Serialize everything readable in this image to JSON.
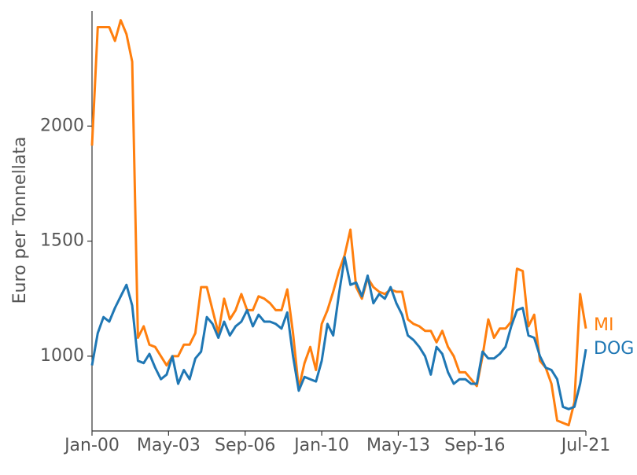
{
  "chart_data": {
    "type": "line",
    "ylabel": "Euro per Tonnellata",
    "x": [
      "2000-01",
      "2000-04",
      "2000-07",
      "2000-10",
      "2001-01",
      "2001-04",
      "2001-07",
      "2001-10",
      "2002-01",
      "2002-04",
      "2002-07",
      "2002-10",
      "2003-01",
      "2003-04",
      "2003-07",
      "2003-10",
      "2004-01",
      "2004-04",
      "2004-07",
      "2004-10",
      "2005-01",
      "2005-04",
      "2005-07",
      "2005-10",
      "2006-01",
      "2006-04",
      "2006-07",
      "2006-10",
      "2007-01",
      "2007-04",
      "2007-07",
      "2007-10",
      "2008-01",
      "2008-04",
      "2008-07",
      "2008-10",
      "2009-01",
      "2009-04",
      "2009-07",
      "2009-10",
      "2010-01",
      "2010-04",
      "2010-07",
      "2010-10",
      "2011-01",
      "2011-04",
      "2011-07",
      "2011-10",
      "2012-01",
      "2012-04",
      "2012-07",
      "2012-10",
      "2013-01",
      "2013-04",
      "2013-07",
      "2013-10",
      "2014-01",
      "2014-04",
      "2014-07",
      "2014-10",
      "2015-01",
      "2015-04",
      "2015-07",
      "2015-10",
      "2016-01",
      "2016-04",
      "2016-07",
      "2016-10",
      "2017-01",
      "2017-04",
      "2017-07",
      "2017-10",
      "2018-01",
      "2018-04",
      "2018-07",
      "2018-10",
      "2019-01",
      "2019-04",
      "2019-07",
      "2019-10",
      "2020-01",
      "2020-04",
      "2020-07",
      "2020-10",
      "2021-01",
      "2021-04",
      "2021-07"
    ],
    "series": [
      {
        "name": "MI",
        "color": "#ff7f0e",
        "values": [
          1915,
          2430,
          2430,
          2430,
          2370,
          2460,
          2400,
          2280,
          1080,
          1130,
          1050,
          1040,
          1000,
          960,
          1000,
          1000,
          1050,
          1050,
          1100,
          1300,
          1300,
          1200,
          1100,
          1250,
          1160,
          1200,
          1270,
          1200,
          1200,
          1260,
          1250,
          1230,
          1200,
          1200,
          1290,
          1100,
          860,
          970,
          1040,
          940,
          1140,
          1200,
          1280,
          1370,
          1440,
          1550,
          1300,
          1250,
          1340,
          1300,
          1280,
          1270,
          1290,
          1280,
          1280,
          1160,
          1140,
          1130,
          1110,
          1110,
          1060,
          1110,
          1040,
          1000,
          930,
          930,
          900,
          870,
          1000,
          1160,
          1080,
          1120,
          1120,
          1150,
          1380,
          1370,
          1130,
          1180,
          980,
          950,
          880,
          720,
          710,
          700,
          800,
          1270,
          1120
        ]
      },
      {
        "name": "DOG",
        "color": "#1f77b4",
        "values": [
          960,
          1100,
          1170,
          1150,
          1210,
          1260,
          1310,
          1220,
          980,
          970,
          1010,
          950,
          900,
          920,
          1000,
          880,
          940,
          900,
          990,
          1020,
          1170,
          1140,
          1080,
          1150,
          1090,
          1130,
          1150,
          1200,
          1130,
          1180,
          1150,
          1150,
          1140,
          1120,
          1190,
          1000,
          850,
          910,
          900,
          890,
          980,
          1140,
          1090,
          1270,
          1430,
          1310,
          1320,
          1260,
          1350,
          1230,
          1270,
          1250,
          1300,
          1230,
          1180,
          1090,
          1070,
          1040,
          1000,
          920,
          1040,
          1010,
          930,
          880,
          900,
          900,
          880,
          880,
          1020,
          990,
          990,
          1010,
          1040,
          1130,
          1200,
          1210,
          1090,
          1080,
          1000,
          950,
          940,
          900,
          780,
          770,
          780,
          880,
          1030
        ]
      }
    ],
    "xlim": [
      "2000-01",
      "2021-07"
    ],
    "xticks": [
      {
        "value": "2000-01",
        "label": "Jan-00"
      },
      {
        "value": "2003-05",
        "label": "May-03"
      },
      {
        "value": "2006-09",
        "label": "Sep-06"
      },
      {
        "value": "2010-01",
        "label": "Jan-10"
      },
      {
        "value": "2013-05",
        "label": "May-13"
      },
      {
        "value": "2016-09",
        "label": "Sep-16"
      },
      {
        "value": "2021-07",
        "label": "Jul-21"
      }
    ],
    "ylim": [
      675,
      2500
    ],
    "yticks": [
      1000,
      1500,
      2000
    ]
  }
}
